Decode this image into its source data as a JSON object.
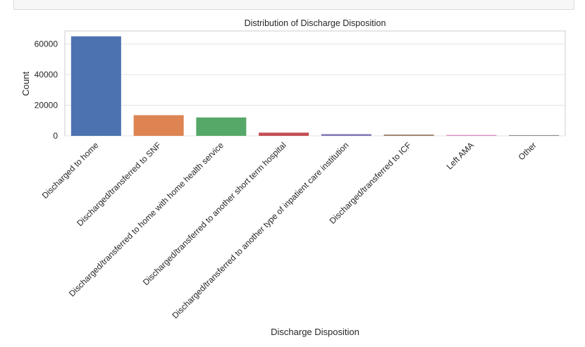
{
  "chart_data": {
    "type": "bar",
    "title": "Distribution of Discharge Disposition",
    "xlabel": "Discharge Disposition",
    "ylabel": "Count",
    "categories": [
      "Discharged to home",
      "Discharged/transferred to SNF",
      "Discharged/transferred to home with home health service",
      "Discharged/transferred to another short term hospital",
      "Discharged/transferred to another type of inpatient care institution",
      "Discharged/transferred to ICF",
      "Left AMA",
      "Other"
    ],
    "values": [
      65000,
      13500,
      12000,
      2100,
      1100,
      800,
      600,
      500
    ],
    "colors": [
      "#4c72b0",
      "#dd8452",
      "#55a868",
      "#c44e52",
      "#8172b3",
      "#937860",
      "#da8bc3",
      "#8c8c8c"
    ],
    "yticks": [
      0,
      20000,
      40000,
      60000
    ],
    "ytick_labels": [
      "0",
      "20000",
      "40000",
      "60000"
    ],
    "ylim": [
      0,
      68500
    ],
    "grid": true,
    "legend": "none"
  }
}
